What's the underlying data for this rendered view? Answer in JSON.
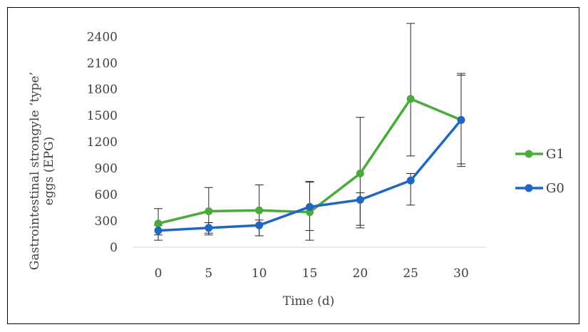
{
  "chart_data": {
    "type": "line",
    "title": "",
    "xlabel": "Time (d)",
    "ylabel": "Gastrointestinal strongyle ‘type’ eggs (EPG)",
    "ylabel_lines": [
      "Gastrointestinal  strongyle  ‘type’",
      "eggs (EPG)"
    ],
    "x": [
      0,
      5,
      10,
      15,
      20,
      25,
      30
    ],
    "xticks": [
      "0",
      "5",
      "10",
      "15",
      "20",
      "25",
      "30"
    ],
    "yticks": [
      "0",
      "300",
      "600",
      "900",
      "1200",
      "1500",
      "1800",
      "2100",
      "2400"
    ],
    "ylim": [
      0,
      2500
    ],
    "grid": false,
    "legend_position": "right",
    "series": [
      {
        "name": "G1",
        "color": "#4aaa3c",
        "values": [
          270,
          410,
          420,
          400,
          840,
          1690,
          1450
        ],
        "err_low": [
          130,
          270,
          290,
          320,
          590,
          650,
          500
        ],
        "err_high": [
          170,
          270,
          290,
          340,
          640,
          860,
          510
        ]
      },
      {
        "name": "G0",
        "color": "#2166c0",
        "values": [
          190,
          220,
          250,
          460,
          540,
          760,
          1450
        ],
        "err_low": [
          110,
          60,
          120,
          270,
          320,
          280,
          530
        ],
        "err_high": [
          60,
          60,
          60,
          290,
          80,
          80,
          530
        ]
      }
    ]
  }
}
